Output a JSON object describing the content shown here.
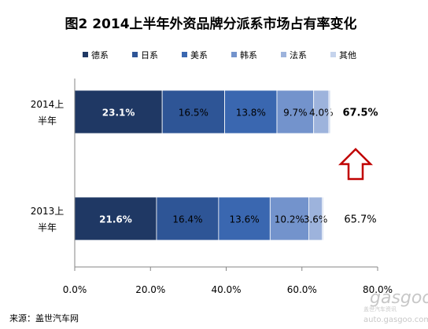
{
  "chart_data": {
    "type": "bar",
    "stacked": true,
    "orientation": "horizontal",
    "title": "图2   2014上半年外资品牌分派系市场占有率变化",
    "categories": [
      "2014上半年",
      "2013上半年"
    ],
    "category_lines": [
      [
        "2014上",
        "半年"
      ],
      [
        "2013上",
        "半年"
      ]
    ],
    "series": [
      {
        "name": "德系",
        "color": "#1F3864",
        "values": [
          23.1,
          21.6
        ],
        "labels": [
          "23.1%",
          "21.6%"
        ],
        "label_color": "#FFFFFF",
        "label_bold": true
      },
      {
        "name": "日系",
        "color": "#2E5596",
        "values": [
          16.5,
          16.4
        ],
        "labels": [
          "16.5%",
          "16.4%"
        ],
        "label_color": "#000000",
        "label_bold": false
      },
      {
        "name": "美系",
        "color": "#3A67B0",
        "values": [
          13.8,
          13.6
        ],
        "labels": [
          "13.8%",
          "13.6%"
        ],
        "label_color": "#000000",
        "label_bold": false
      },
      {
        "name": "韩系",
        "color": "#7393CC",
        "values": [
          9.7,
          10.2
        ],
        "labels": [
          "9.7%",
          "10.2%"
        ],
        "label_color": "#000000",
        "label_bold": false
      },
      {
        "name": "法系",
        "color": "#9DB3DC",
        "values": [
          4.0,
          3.6
        ],
        "labels": [
          "4.0%",
          "3.6%"
        ],
        "label_color": "#000000",
        "label_bold": false
      },
      {
        "name": "其他",
        "color": "#C5D3EC",
        "values": [
          0.4,
          0.3
        ],
        "labels": [
          "",
          ""
        ],
        "label_color": "#000000",
        "label_bold": false
      }
    ],
    "totals": [
      "67.5%",
      "65.7%"
    ],
    "totals_bold": [
      true,
      false
    ],
    "xlim": [
      0,
      80
    ],
    "xticks": [
      "0.0%",
      "20.0%",
      "40.0%",
      "60.0%",
      "80.0%"
    ],
    "legend_position": "top",
    "grid": false,
    "annotation": "up-arrow"
  },
  "source": "来源：盖世汽车网",
  "watermark": {
    "brand": "gasgoo",
    "sub": "盖世汽车资讯",
    "url": "auto.gasgoo.com"
  },
  "colors": {
    "axis": "#868686",
    "arrow": "#C00000"
  }
}
